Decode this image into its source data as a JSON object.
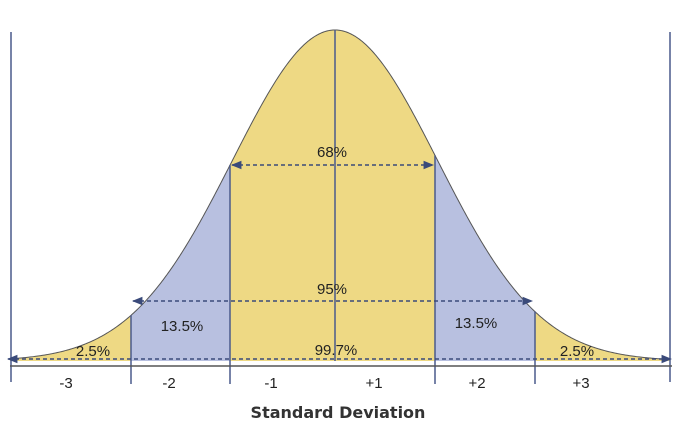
{
  "colors": {
    "inner": "#eed984",
    "middle": "#b8c0e0",
    "outer": "#eed984",
    "line": "#4a5a8c",
    "arrow": "#3a4a7a",
    "text": "#222222"
  },
  "labels": {
    "p68": "68%",
    "p95": "95%",
    "p997": "99.7%",
    "p135_left": "13.5%",
    "p135_right": "13.5%",
    "p25_left": "2.5%",
    "p25_right": "2.5%"
  },
  "axis": {
    "title": "Standard Deviation",
    "ticks": [
      "-3",
      "-2",
      "-1",
      "+1",
      "+2",
      "+3"
    ]
  }
}
